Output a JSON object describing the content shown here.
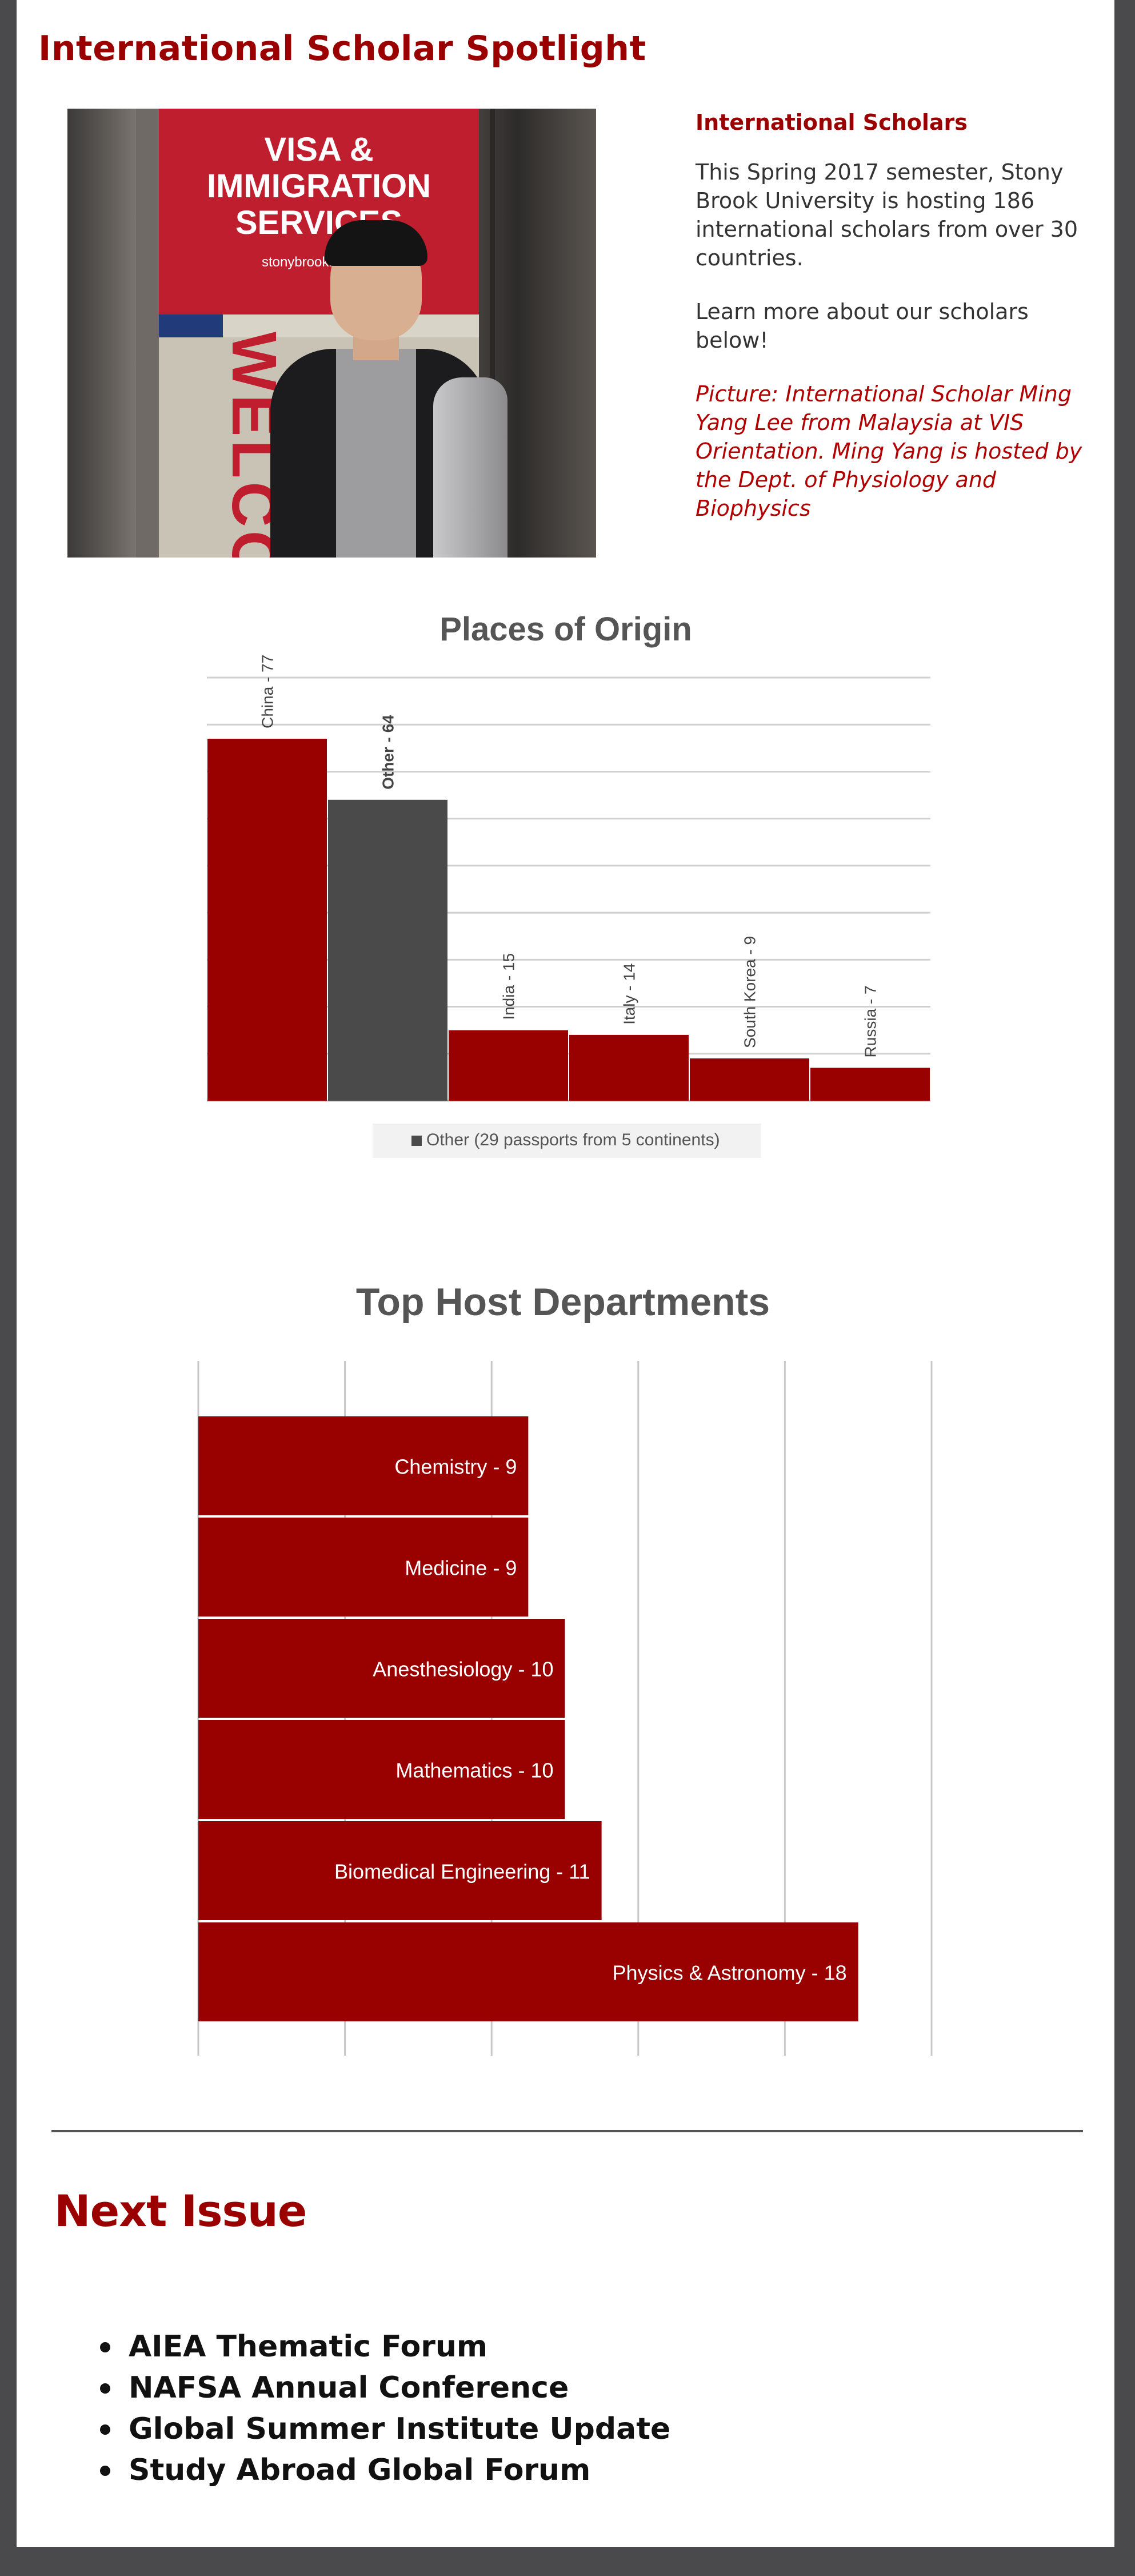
{
  "spotlight": {
    "title": "International Scholar Spotlight",
    "photo": {
      "banner_line1": "VISA &",
      "banner_line2": "IMMIGRATION",
      "banner_line3": "SERVICES",
      "banner_url": "stonybrook.edu/vis",
      "banner_word": "WELCOME"
    },
    "side_heading": "International Scholars",
    "side_para1": "This Spring 2017 semester, Stony Brook University is hosting 186 international scholars from over 30 countries.",
    "side_para2": "Learn more about our scholars below!",
    "side_caption": "Picture: International Scholar Ming Yang Lee from Malaysia at VIS Orientation.  Ming Yang is hosted by the Dept. of Physiology and Biophysics"
  },
  "chart_data": [
    {
      "type": "bar",
      "title": "Places of Origin",
      "categories": [
        "China",
        "Other",
        "India",
        "Italy",
        "South Korea",
        "Russia"
      ],
      "values": [
        77,
        64,
        15,
        14,
        9,
        7
      ],
      "data_labels": [
        "China - 77",
        "Other - 64",
        "India - 15",
        "Italy - 14",
        "South Korea - 9",
        "Russia - 7"
      ],
      "legend": [
        "Other (29 passports from 5 continents)"
      ],
      "legend_position": "bottom",
      "ylim": [
        0,
        90
      ],
      "grid": true,
      "colors": {
        "primary": "#990000",
        "other": "#4a4a4a"
      }
    },
    {
      "type": "bar",
      "orientation": "horizontal",
      "title": "Top Host Departments",
      "categories": [
        "Chemistry",
        "Medicine",
        "Anesthesiology",
        "Mathematics",
        "Biomedical Engineering",
        "Physics & Astronomy"
      ],
      "values": [
        9,
        9,
        10,
        10,
        11,
        18
      ],
      "data_labels": [
        "Chemistry - 9",
        "Medicine - 9",
        "Anesthesiology - 10",
        "Mathematics - 10",
        "Biomedical Engineering - 11",
        "Physics & Astronomy - 18"
      ],
      "xlim": [
        0,
        20
      ],
      "grid": true,
      "colors": {
        "primary": "#990000"
      }
    }
  ],
  "next_issue": {
    "title": "Next Issue",
    "items": [
      "AIEA Thematic Forum",
      "NAFSA Annual Conference",
      "Global Summer Institute Update",
      "Study Abroad Global Forum"
    ]
  },
  "colors": {
    "accent": "#9a0000",
    "frame": "#4a4a4c"
  }
}
